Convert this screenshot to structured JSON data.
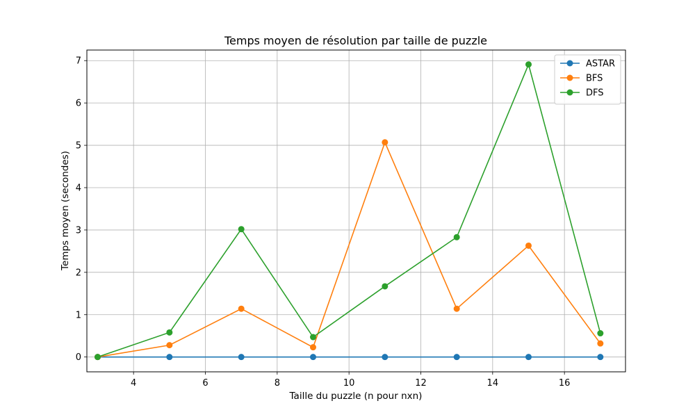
{
  "chart_data": {
    "type": "line",
    "title": "Temps moyen de résolution par taille de puzzle",
    "xlabel": "Taille du puzzle (n pour nxn)",
    "ylabel": "Temps moyen (secondes)",
    "xlim": [
      2.7,
      17.7
    ],
    "ylim": [
      -0.35,
      7.25
    ],
    "xticks": [
      4,
      6,
      8,
      10,
      12,
      14,
      16
    ],
    "yticks": [
      0,
      1,
      2,
      3,
      4,
      5,
      6,
      7
    ],
    "grid": true,
    "legend_position": "top-right",
    "x": [
      3,
      5,
      7,
      9,
      11,
      13,
      15,
      17
    ],
    "series": [
      {
        "name": "ASTAR",
        "color": "#1f77b4",
        "values": [
          0,
          0,
          0,
          0,
          0,
          0,
          0,
          0
        ]
      },
      {
        "name": "BFS",
        "color": "#ff7f0e",
        "values": [
          0,
          0.28,
          1.14,
          0.23,
          5.07,
          1.14,
          2.63,
          0.32
        ]
      },
      {
        "name": "DFS",
        "color": "#2ca02c",
        "values": [
          0,
          0.58,
          3.02,
          0.47,
          1.67,
          2.83,
          6.91,
          0.56
        ]
      }
    ]
  }
}
